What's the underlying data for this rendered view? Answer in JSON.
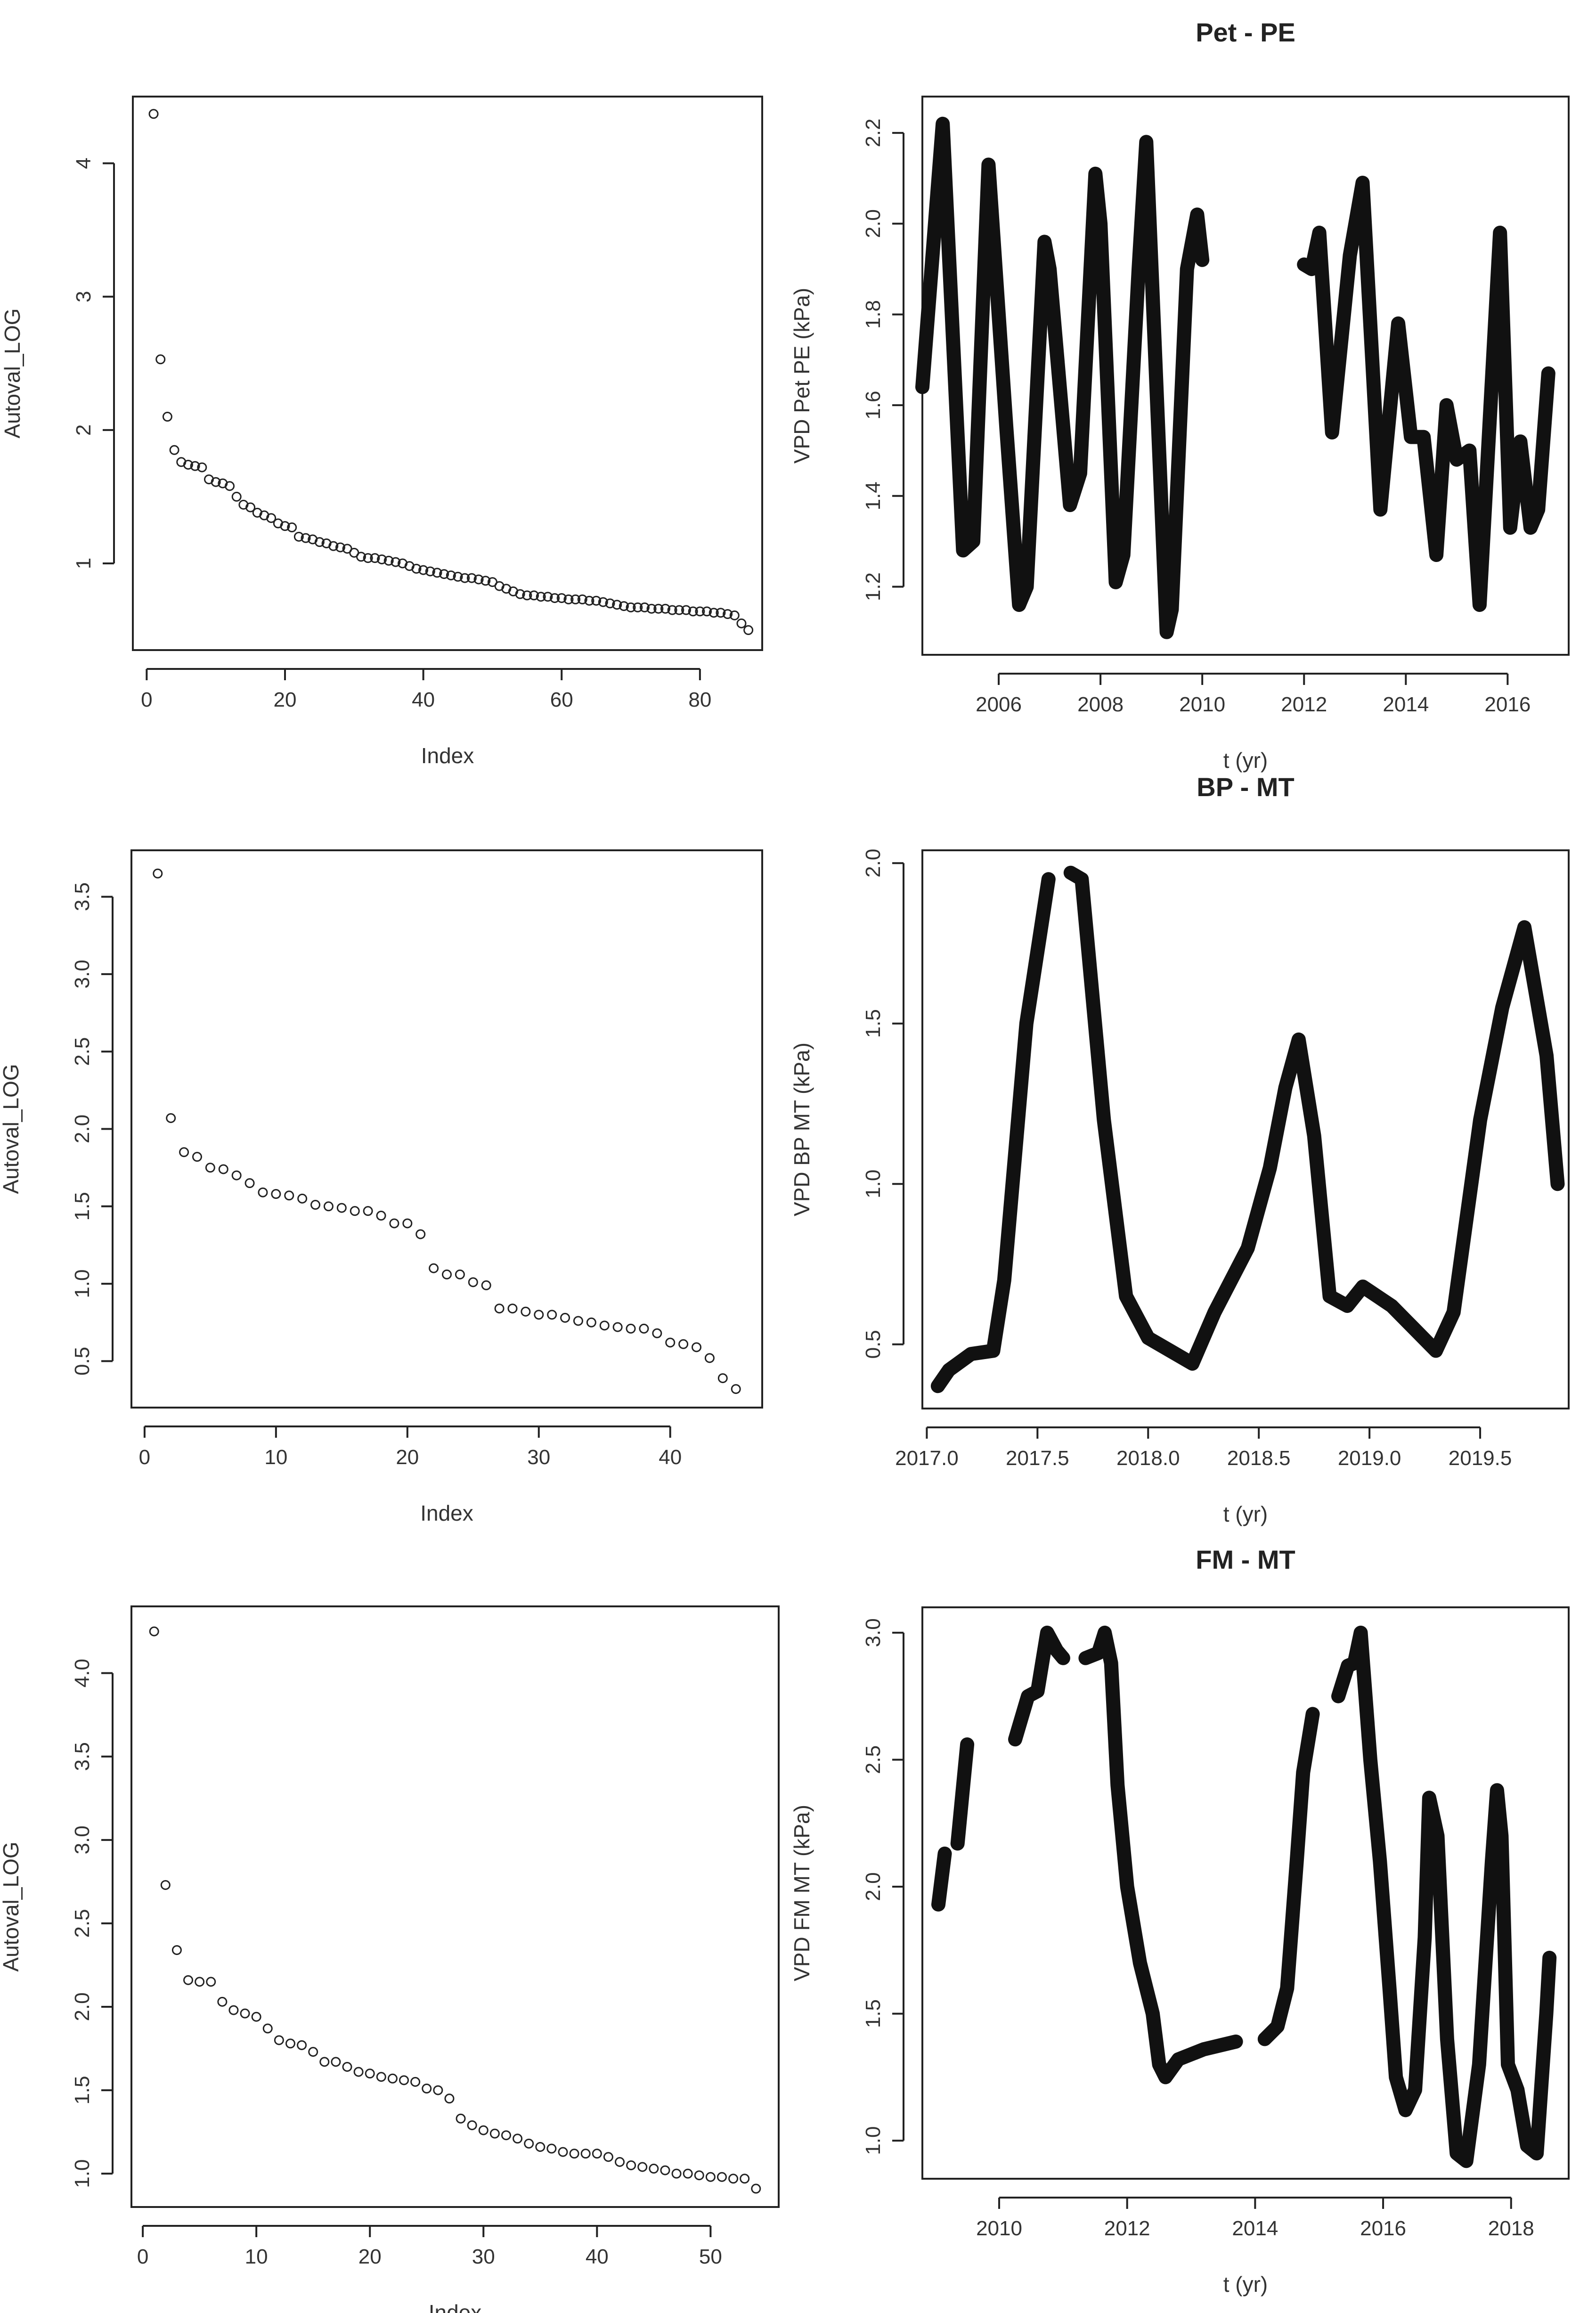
{
  "chart_data": [
    {
      "id": "scree_1",
      "type": "scatter",
      "title": "",
      "xlabel": "Index",
      "ylabel": "Autoval_LOG",
      "xlim": [
        -2,
        89
      ],
      "ylim": [
        0.35,
        4.5
      ],
      "xticks": [
        0,
        20,
        40,
        60,
        80
      ],
      "yticks": [
        1,
        2,
        3,
        4
      ],
      "series": [
        {
          "name": "Autoval_LOG",
          "x": [
            1,
            2,
            3,
            4,
            5,
            6,
            7,
            8,
            9,
            10,
            11,
            12,
            13,
            14,
            15,
            16,
            17,
            18,
            19,
            20,
            21,
            22,
            23,
            24,
            25,
            26,
            27,
            28,
            29,
            30,
            31,
            32,
            33,
            34,
            35,
            36,
            37,
            38,
            39,
            40,
            41,
            42,
            43,
            44,
            45,
            46,
            47,
            48,
            49,
            50,
            51,
            52,
            53,
            54,
            55,
            56,
            57,
            58,
            59,
            60,
            61,
            62,
            63,
            64,
            65,
            66,
            67,
            68,
            69,
            70,
            71,
            72,
            73,
            74,
            75,
            76,
            77,
            78,
            79,
            80,
            81,
            82,
            83,
            84,
            85,
            86,
            87
          ],
          "y": [
            4.37,
            2.53,
            2.1,
            1.85,
            1.76,
            1.74,
            1.73,
            1.72,
            1.63,
            1.61,
            1.6,
            1.58,
            1.5,
            1.44,
            1.42,
            1.38,
            1.36,
            1.34,
            1.3,
            1.28,
            1.27,
            1.2,
            1.19,
            1.18,
            1.16,
            1.15,
            1.13,
            1.12,
            1.11,
            1.08,
            1.05,
            1.04,
            1.04,
            1.03,
            1.02,
            1.01,
            1.0,
            0.98,
            0.96,
            0.95,
            0.94,
            0.93,
            0.92,
            0.91,
            0.9,
            0.89,
            0.89,
            0.88,
            0.87,
            0.86,
            0.83,
            0.81,
            0.79,
            0.77,
            0.76,
            0.76,
            0.75,
            0.75,
            0.74,
            0.74,
            0.73,
            0.73,
            0.73,
            0.72,
            0.72,
            0.71,
            0.7,
            0.69,
            0.68,
            0.67,
            0.67,
            0.67,
            0.66,
            0.66,
            0.66,
            0.65,
            0.65,
            0.65,
            0.64,
            0.64,
            0.64,
            0.63,
            0.63,
            0.62,
            0.61,
            0.55,
            0.5
          ]
        }
      ]
    },
    {
      "id": "vpd_pet_pe",
      "type": "line",
      "title": "Pet - PE",
      "xlabel": "t (yr)",
      "ylabel": "VPD Pet PE (kPa)",
      "xlim": [
        2004.5,
        2017.2
      ],
      "ylim": [
        1.05,
        2.28
      ],
      "xticks": [
        2006,
        2008,
        2010,
        2012,
        2014,
        2016
      ],
      "yticks": [
        1.2,
        1.4,
        1.6,
        1.8,
        2.0,
        2.2
      ],
      "series": [
        {
          "name": "segment_1",
          "x": [
            2004.5,
            2004.9,
            2005.3,
            2005.5,
            2005.8,
            2006.15,
            2006.4,
            2006.55,
            2006.9,
            2007.0,
            2007.4,
            2007.6,
            2007.9,
            2008.0,
            2008.3,
            2008.45,
            2008.75,
            2008.9,
            2009.3,
            2009.4,
            2009.7,
            2009.9,
            2010.0
          ],
          "y": [
            1.64,
            2.22,
            1.28,
            1.3,
            2.13,
            1.55,
            1.16,
            1.2,
            1.96,
            1.9,
            1.38,
            1.45,
            2.11,
            2.0,
            1.21,
            1.27,
            1.9,
            2.18,
            1.1,
            1.15,
            1.9,
            2.02,
            1.92
          ]
        },
        {
          "name": "segment_2",
          "x": [
            2012.0,
            2012.15,
            2012.3,
            2012.55,
            2012.9,
            2013.15,
            2013.5,
            2013.85,
            2014.1,
            2014.35,
            2014.6,
            2014.8,
            2015.0,
            2015.25,
            2015.45,
            2015.85,
            2016.05,
            2016.25,
            2016.45,
            2016.6,
            2016.8
          ],
          "y": [
            1.91,
            1.9,
            1.98,
            1.54,
            1.93,
            2.09,
            1.37,
            1.78,
            1.53,
            1.53,
            1.27,
            1.6,
            1.48,
            1.5,
            1.16,
            1.98,
            1.33,
            1.52,
            1.33,
            1.37,
            1.67
          ]
        }
      ]
    },
    {
      "id": "scree_2",
      "type": "scatter",
      "title": "",
      "xlabel": "Index",
      "ylabel": "Autoval_LOG",
      "xlim": [
        -1,
        47
      ],
      "ylim": [
        0.2,
        3.8
      ],
      "xticks": [
        0,
        10,
        20,
        30,
        40
      ],
      "yticks": [
        0.5,
        1.0,
        1.5,
        2.0,
        2.5,
        3.0,
        3.5
      ],
      "series": [
        {
          "name": "Autoval_LOG",
          "x": [
            1,
            2,
            3,
            4,
            5,
            6,
            7,
            8,
            9,
            10,
            11,
            12,
            13,
            14,
            15,
            16,
            17,
            18,
            19,
            20,
            21,
            22,
            23,
            24,
            25,
            26,
            27,
            28,
            29,
            30,
            31,
            32,
            33,
            34,
            35,
            36,
            37,
            38,
            39,
            40,
            41,
            42,
            43,
            44,
            45
          ],
          "y": [
            3.65,
            2.07,
            1.85,
            1.82,
            1.75,
            1.74,
            1.7,
            1.65,
            1.59,
            1.58,
            1.57,
            1.55,
            1.51,
            1.5,
            1.49,
            1.47,
            1.47,
            1.44,
            1.39,
            1.39,
            1.32,
            1.1,
            1.06,
            1.06,
            1.01,
            0.99,
            0.84,
            0.84,
            0.82,
            0.8,
            0.8,
            0.78,
            0.76,
            0.75,
            0.73,
            0.72,
            0.71,
            0.71,
            0.68,
            0.62,
            0.61,
            0.59,
            0.52,
            0.39,
            0.32
          ]
        }
      ]
    },
    {
      "id": "vpd_bp_mt",
      "type": "line",
      "title": "BP - MT",
      "xlabel": "t (yr)",
      "ylabel": "VPD BP MT (kPa)",
      "xlim": [
        2016.98,
        2019.9
      ],
      "ylim": [
        0.3,
        2.04
      ],
      "xticks": [
        2017.0,
        2017.5,
        2018.0,
        2018.5,
        2019.0,
        2019.5
      ],
      "yticks": [
        0.5,
        1.0,
        1.5,
        2.0
      ],
      "series": [
        {
          "name": "segment_1",
          "x": [
            2017.05,
            2017.1,
            2017.2,
            2017.3,
            2017.35,
            2017.45,
            2017.55
          ],
          "y": [
            0.37,
            0.42,
            0.47,
            0.48,
            0.7,
            1.5,
            1.95
          ]
        },
        {
          "name": "segment_2",
          "x": [
            2017.65,
            2017.7,
            2017.8,
            2017.9,
            2018.0,
            2018.1,
            2018.2,
            2018.3,
            2018.45,
            2018.55,
            2018.62,
            2018.68,
            2018.75,
            2018.82,
            2018.9,
            2018.97,
            2019.1,
            2019.2,
            2019.3,
            2019.38,
            2019.5,
            2019.6,
            2019.7,
            2019.8,
            2019.85
          ],
          "y": [
            1.97,
            1.95,
            1.2,
            0.65,
            0.52,
            0.48,
            0.44,
            0.6,
            0.8,
            1.05,
            1.3,
            1.45,
            1.15,
            0.65,
            0.62,
            0.68,
            0.62,
            0.55,
            0.48,
            0.6,
            1.2,
            1.55,
            1.8,
            1.4,
            1.0
          ]
        }
      ]
    },
    {
      "id": "scree_3",
      "type": "scatter",
      "title": "",
      "xlabel": "Index",
      "ylabel": "Autoval_LOG",
      "xlim": [
        -1,
        56
      ],
      "ylim": [
        0.8,
        4.4
      ],
      "xticks": [
        0,
        10,
        20,
        30,
        40,
        50
      ],
      "yticks": [
        1.0,
        1.5,
        2.0,
        2.5,
        3.0,
        3.5,
        4.0
      ],
      "series": [
        {
          "name": "Autoval_LOG",
          "x": [
            1,
            2,
            3,
            4,
            5,
            6,
            7,
            8,
            9,
            10,
            11,
            12,
            13,
            14,
            15,
            16,
            17,
            18,
            19,
            20,
            21,
            22,
            23,
            24,
            25,
            26,
            27,
            28,
            29,
            30,
            31,
            32,
            33,
            34,
            35,
            36,
            37,
            38,
            39,
            40,
            41,
            42,
            43,
            44,
            45,
            46,
            47,
            48,
            49,
            50,
            51,
            52,
            53,
            54
          ],
          "y": [
            4.25,
            2.73,
            2.34,
            2.16,
            2.15,
            2.15,
            2.03,
            1.98,
            1.96,
            1.94,
            1.87,
            1.8,
            1.78,
            1.77,
            1.73,
            1.67,
            1.67,
            1.64,
            1.61,
            1.6,
            1.58,
            1.57,
            1.56,
            1.55,
            1.51,
            1.5,
            1.45,
            1.33,
            1.29,
            1.26,
            1.24,
            1.23,
            1.21,
            1.18,
            1.16,
            1.15,
            1.13,
            1.12,
            1.12,
            1.12,
            1.1,
            1.07,
            1.05,
            1.04,
            1.03,
            1.02,
            1.0,
            1.0,
            0.99,
            0.98,
            0.98,
            0.97,
            0.97,
            0.91
          ]
        }
      ]
    },
    {
      "id": "vpd_fm_mt",
      "type": "line",
      "title": "FM - MT",
      "xlabel": "t (yr)",
      "ylabel": "VPD FM MT (kPa)",
      "xlim": [
        2008.8,
        2018.9
      ],
      "ylim": [
        0.85,
        3.1
      ],
      "xticks": [
        2010,
        2012,
        2014,
        2016,
        2018
      ],
      "yticks": [
        1.0,
        1.5,
        2.0,
        2.5,
        3.0
      ],
      "series": [
        {
          "name": "segment_1",
          "x": [
            2009.05,
            2009.15
          ],
          "y": [
            1.93,
            2.13
          ]
        },
        {
          "name": "segment_2",
          "x": [
            2009.35,
            2009.5
          ],
          "y": [
            2.17,
            2.56
          ]
        },
        {
          "name": "segment_3",
          "x": [
            2010.25,
            2010.45,
            2010.6,
            2010.75,
            2010.9,
            2011.0
          ],
          "y": [
            2.58,
            2.75,
            2.77,
            3.0,
            2.93,
            2.9
          ]
        },
        {
          "name": "segment_4",
          "x": [
            2011.35,
            2011.55,
            2011.65,
            2011.75,
            2011.85,
            2012.0,
            2012.2,
            2012.4,
            2012.5,
            2012.6,
            2012.8,
            2013.2,
            2013.7
          ],
          "y": [
            2.9,
            2.92,
            3.0,
            2.88,
            2.4,
            2.0,
            1.7,
            1.5,
            1.3,
            1.25,
            1.32,
            1.36,
            1.39
          ]
        },
        {
          "name": "segment_5",
          "x": [
            2014.15,
            2014.35,
            2014.5,
            2014.65,
            2014.75,
            2014.9
          ],
          "y": [
            1.4,
            1.45,
            1.6,
            2.1,
            2.45,
            2.68
          ]
        },
        {
          "name": "segment_6",
          "x": [
            2015.3,
            2015.45,
            2015.55,
            2015.65,
            2015.8,
            2015.95,
            2016.1,
            2016.2,
            2016.35,
            2016.5,
            2016.65,
            2016.72,
            2016.85,
            2017.0,
            2017.15,
            2017.3,
            2017.5,
            2017.7,
            2017.78,
            2017.85,
            2017.95,
            2018.1,
            2018.25,
            2018.4,
            2018.55,
            2018.6
          ],
          "y": [
            2.75,
            2.87,
            2.88,
            3.0,
            2.5,
            2.1,
            1.6,
            1.25,
            1.12,
            1.2,
            1.8,
            2.35,
            2.2,
            1.4,
            0.95,
            0.92,
            1.3,
            2.1,
            2.38,
            2.2,
            1.3,
            1.2,
            0.98,
            0.95,
            1.5,
            1.72
          ]
        }
      ]
    }
  ]
}
